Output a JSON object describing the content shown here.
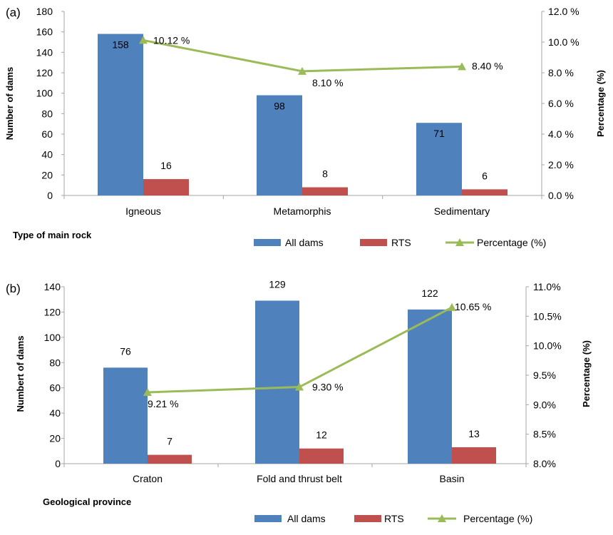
{
  "colors": {
    "all_dams": "#4F81BD",
    "rts": "#C0504D",
    "percentage": "#9BBB59",
    "axis": "#A6A6A6"
  },
  "chart_data": [
    {
      "panel": "(a)",
      "type": "bar",
      "categories": [
        "Igneous",
        "Metamorphis",
        "Sedimentary"
      ],
      "series": [
        {
          "name": "All dams",
          "kind": "bar",
          "axis": "left",
          "values": [
            158,
            98,
            71
          ],
          "labels": [
            "158",
            "98",
            "71"
          ]
        },
        {
          "name": "RTS",
          "kind": "bar",
          "axis": "left",
          "values": [
            16,
            8,
            6
          ],
          "labels": [
            "16",
            "8",
            "6"
          ]
        },
        {
          "name": "Percentage (%)",
          "kind": "line",
          "axis": "right",
          "marker": "triangle",
          "values": [
            10.12,
            8.1,
            8.4
          ],
          "labels": [
            "10.12 %",
            "8.10 %",
            "8.40 %"
          ]
        }
      ],
      "xlabel": "Type of main rock",
      "ylabel": "Number of dams",
      "y2label": "Percentage (%)",
      "ylim": [
        0,
        180
      ],
      "yticks": [
        "0",
        "20",
        "40",
        "60",
        "80",
        "100",
        "120",
        "140",
        "160",
        "180"
      ],
      "y2lim": [
        0,
        12
      ],
      "y2ticks": [
        "0.0 %",
        "2.0 %",
        "4.0 %",
        "6.0 %",
        "8.0 %",
        "10.0 %",
        "12.0 %"
      ],
      "legend": [
        "All dams",
        "RTS",
        "Percentage (%)"
      ],
      "legend_position": "bottom"
    },
    {
      "panel": "(b)",
      "type": "bar",
      "categories": [
        "Craton",
        "Fold and thrust belt",
        "Basin"
      ],
      "series": [
        {
          "name": "All dams",
          "kind": "bar",
          "axis": "left",
          "values": [
            76,
            129,
            122
          ],
          "labels": [
            "76",
            "129",
            "122"
          ]
        },
        {
          "name": "RTS",
          "kind": "bar",
          "axis": "left",
          "values": [
            7,
            12,
            13
          ],
          "labels": [
            "7",
            "12",
            "13"
          ]
        },
        {
          "name": "Percentage (%)",
          "kind": "line",
          "axis": "right",
          "marker": "triangle",
          "values": [
            9.21,
            9.3,
            10.65
          ],
          "labels": [
            "9.21 %",
            "9.30 %",
            "10.65 %"
          ]
        }
      ],
      "xlabel": "Geological province",
      "ylabel": "Numbert of dams",
      "y2label": "Percentage (%)",
      "ylim": [
        0,
        140
      ],
      "yticks": [
        "0",
        "20",
        "40",
        "60",
        "80",
        "100",
        "120",
        "140"
      ],
      "y2lim": [
        8,
        11
      ],
      "y2ticks": [
        "8.0%",
        "8.5%",
        "9.0%",
        "9.5%",
        "10.0%",
        "10.5%",
        "11.0%"
      ],
      "legend": [
        "All dams",
        "RTS",
        "Percentage (%)"
      ],
      "legend_position": "bottom"
    }
  ]
}
